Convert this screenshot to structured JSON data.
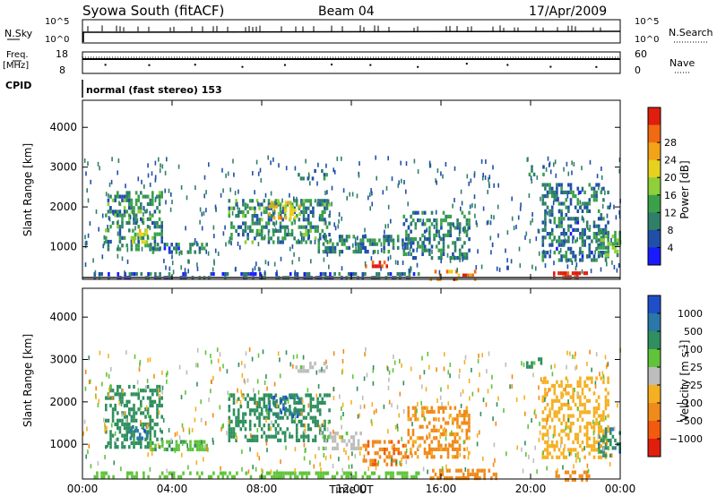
{
  "header": {
    "title": "Syowa South (fitACF)",
    "beam": "Beam 04",
    "date": "17/Apr/2009"
  },
  "param_panels": {
    "nsky_label": "N.Sky",
    "nsky_ticks": [
      "10^5",
      "10^0"
    ],
    "nsearch_label": "N.Search",
    "nsearch_ticks": [
      "10^5",
      "10^0"
    ],
    "freq_label": "Freq.",
    "freq_unit": "[MHz]",
    "freq_ticks": [
      "18",
      "8"
    ],
    "nave_label": "Nave",
    "nave_ticks": [
      "60",
      "0"
    ],
    "cpid_label": "CPID",
    "cpid_text": "normal (fast stereo) 153"
  },
  "chart_data": [
    {
      "type": "heatmap",
      "name": "power",
      "ylabel": "Slant Range [km]",
      "yticks": [
        "1000",
        "2000",
        "3000",
        "4000"
      ],
      "ylim": [
        180,
        4680
      ],
      "xlim": [
        0,
        24
      ],
      "xticks": [
        "00:00",
        "04:00",
        "08:00",
        "12:00",
        "16:00",
        "20:00",
        "00:00"
      ],
      "colorbar": {
        "label": "Power [dB]",
        "ticks": [
          "4",
          "8",
          "12",
          "16",
          "20",
          "24",
          "28"
        ],
        "colors": [
          "#1a1aff",
          "#1f4fa8",
          "#2f7f6a",
          "#3aa14a",
          "#8fcf3a",
          "#e6d21e",
          "#f2a318",
          "#f06a12",
          "#e01e0e"
        ]
      },
      "patches": [
        {
          "t0": 1.0,
          "t1": 3.5,
          "r0": 900,
          "r1": 2400,
          "v": 10
        },
        {
          "t0": 2.1,
          "t1": 2.9,
          "r0": 1150,
          "r1": 1450,
          "v": 18
        },
        {
          "t0": 3.0,
          "t1": 5.5,
          "r0": 850,
          "r1": 1100,
          "v": 8
        },
        {
          "t0": 6.5,
          "t1": 11.0,
          "r0": 1100,
          "r1": 2200,
          "v": 10
        },
        {
          "t0": 8.3,
          "t1": 9.7,
          "r0": 1700,
          "r1": 2150,
          "v": 20
        },
        {
          "t0": 9.5,
          "t1": 10.9,
          "r0": 2750,
          "r1": 2950,
          "v": 8
        },
        {
          "t0": 10.5,
          "t1": 14.5,
          "r0": 900,
          "r1": 1300,
          "v": 9
        },
        {
          "t0": 12.6,
          "t1": 13.6,
          "r0": 500,
          "r1": 650,
          "v": 30
        },
        {
          "t0": 14.3,
          "t1": 17.3,
          "r0": 700,
          "r1": 1900,
          "v": 9
        },
        {
          "t0": 15.5,
          "t1": 17.5,
          "r0": 200,
          "r1": 420,
          "v": 24
        },
        {
          "t0": 19.8,
          "t1": 20.6,
          "r0": 2800,
          "r1": 3050,
          "v": 8
        },
        {
          "t0": 20.5,
          "t1": 23.5,
          "r0": 700,
          "r1": 2600,
          "v": 8
        },
        {
          "t0": 21.0,
          "t1": 22.6,
          "r0": 200,
          "r1": 380,
          "v": 30
        },
        {
          "t0": 23.0,
          "t1": 24.0,
          "r0": 750,
          "r1": 1400,
          "v": 12
        },
        {
          "t0": 0.5,
          "t1": 15.0,
          "r0": 200,
          "r1": 360,
          "v": 6
        }
      ]
    },
    {
      "type": "heatmap",
      "name": "velocity",
      "ylabel": "Slant Range [km]",
      "yticks": [
        "1000",
        "2000",
        "3000",
        "4000"
      ],
      "ylim": [
        180,
        4680
      ],
      "xlim": [
        0,
        24
      ],
      "xlabel": "Time UT",
      "xticks": [
        "00:00",
        "04:00",
        "08:00",
        "12:00",
        "16:00",
        "20:00",
        "00:00"
      ],
      "colorbar": {
        "label": "Velocity [m s",
        "label_sup": "-1",
        "label_end": "]",
        "ticks": [
          "1000",
          "500",
          "100",
          "25",
          "−25",
          "−100",
          "−500",
          "−1000"
        ],
        "colors": [
          "#1f4fc8",
          "#2a78a8",
          "#2f8f5e",
          "#5fc43a",
          "#bdbdbd",
          "#f5b022",
          "#f08a1a",
          "#f25a0f",
          "#e01e0e"
        ]
      },
      "patches": [
        {
          "t0": 1.0,
          "t1": 3.5,
          "r0": 900,
          "r1": 2400,
          "v": 300
        },
        {
          "t0": 2.1,
          "t1": 2.9,
          "r0": 1150,
          "r1": 1450,
          "v": 700
        },
        {
          "t0": 3.0,
          "t1": 5.5,
          "r0": 850,
          "r1": 1100,
          "v": 80
        },
        {
          "t0": 6.5,
          "t1": 11.0,
          "r0": 1100,
          "r1": 2200,
          "v": 200
        },
        {
          "t0": 8.3,
          "t1": 9.7,
          "r0": 1700,
          "r1": 2150,
          "v": 800
        },
        {
          "t0": 9.5,
          "t1": 10.9,
          "r0": 2750,
          "r1": 2950,
          "v": 0
        },
        {
          "t0": 10.5,
          "t1": 12.5,
          "r0": 900,
          "r1": 1300,
          "v": 0
        },
        {
          "t0": 12.5,
          "t1": 14.5,
          "r0": 550,
          "r1": 1100,
          "v": -400
        },
        {
          "t0": 14.5,
          "t1": 17.3,
          "r0": 700,
          "r1": 1900,
          "v": -150
        },
        {
          "t0": 15.5,
          "t1": 18.5,
          "r0": 200,
          "r1": 420,
          "v": -300
        },
        {
          "t0": 19.8,
          "t1": 20.6,
          "r0": 2800,
          "r1": 3050,
          "v": 150
        },
        {
          "t0": 20.5,
          "t1": 23.5,
          "r0": 700,
          "r1": 2600,
          "v": -60
        },
        {
          "t0": 21.0,
          "t1": 22.6,
          "r0": 200,
          "r1": 380,
          "v": -250
        },
        {
          "t0": 23.0,
          "t1": 24.0,
          "r0": 750,
          "r1": 1400,
          "v": 400
        },
        {
          "t0": 0.5,
          "t1": 15.0,
          "r0": 200,
          "r1": 360,
          "v": 60
        }
      ]
    }
  ]
}
